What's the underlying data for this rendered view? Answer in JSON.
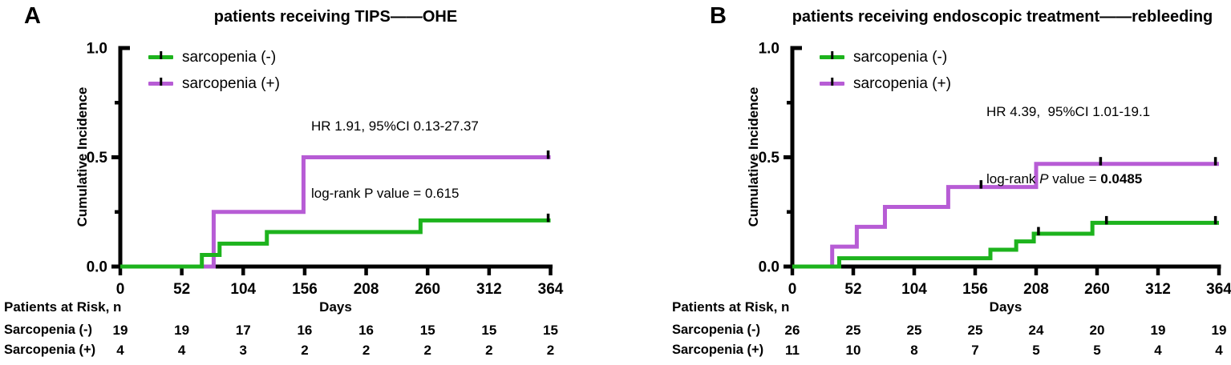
{
  "colors": {
    "green": "#1db31d",
    "purple": "#b75cd5",
    "axis": "#000000"
  },
  "panels": [
    {
      "letter": "A",
      "title": "patients receiving TIPS——OHE",
      "ylabel": "Cumulative Incidence",
      "xlabel": "Days",
      "legend": [
        {
          "label": "sarcopenia (-)",
          "color": "green"
        },
        {
          "label": "sarcopenia (+)",
          "color": "purple"
        }
      ],
      "stats": {
        "line1": "HR 1.91, 95%CI 0.13-27.37",
        "line2_prefix": "log-rank ",
        "line2_p": "P",
        "line2_mid": " value = ",
        "line2_value": "0.615",
        "p_italic": false,
        "value_bold": false
      },
      "risk_header": "Patients at Risk, n",
      "risk_rows": [
        {
          "label": "Sarcopenia (-)",
          "values": [
            "19",
            "19",
            "17",
            "16",
            "16",
            "15",
            "15",
            "15"
          ]
        },
        {
          "label": "Sarcopenia (+)",
          "values": [
            "4",
            "4",
            "3",
            "2",
            "2",
            "2",
            "2",
            "2"
          ]
        }
      ],
      "chart_data": {
        "type": "line",
        "subtype": "kaplan-meier-cumulative-incidence-step",
        "title": "patients receiving TIPS——OHE",
        "xlabel": "Days",
        "ylabel": "Cumulative Incidence",
        "xlim": [
          0,
          364
        ],
        "ylim": [
          0.0,
          1.0
        ],
        "x_ticks": [
          0,
          52,
          104,
          156,
          208,
          260,
          312,
          364
        ],
        "y_ticks": [
          0.0,
          0.5,
          1.0
        ],
        "y_tick_labels": [
          "0.0",
          "0.5",
          "1.0"
        ],
        "y_minor_ticks": [
          0.25,
          0.75
        ],
        "grid": false,
        "legend_position": "upper-left-inside",
        "series": [
          {
            "name": "sarcopenia (-)",
            "color_key": "green",
            "steps": [
              [
                0,
                0
              ],
              [
                69,
                0.053
              ],
              [
                84,
                0.105
              ],
              [
                124,
                0.158
              ],
              [
                254,
                0.211
              ],
              [
                364,
                0.211
              ]
            ],
            "censor_marks": [
              [
                362,
                0.211
              ]
            ]
          },
          {
            "name": "sarcopenia (+)",
            "color_key": "purple",
            "steps": [
              [
                0,
                0
              ],
              [
                79,
                0.25
              ],
              [
                155,
                0.5
              ],
              [
                364,
                0.5
              ]
            ],
            "censor_marks": [
              [
                362,
                0.5
              ]
            ]
          }
        ]
      }
    },
    {
      "letter": "B",
      "title": "patients receiving endoscopic treatment——rebleeding",
      "ylabel": "Cumulative Incidence",
      "xlabel": "Days",
      "legend": [
        {
          "label": "sarcopenia (-)",
          "color": "green"
        },
        {
          "label": "sarcopenia (+)",
          "color": "purple"
        }
      ],
      "stats": {
        "line1": "HR 4.39,  95%CI 1.01-19.1",
        "line2_prefix": "log-rank ",
        "line2_p": "P",
        "line2_mid": " value = ",
        "line2_value": "0.0485",
        "p_italic": true,
        "value_bold": true
      },
      "risk_header": "Patients at Risk, n",
      "risk_rows": [
        {
          "label": "Sarcopenia (-)",
          "values": [
            "26",
            "25",
            "25",
            "25",
            "24",
            "20",
            "19",
            "19"
          ]
        },
        {
          "label": "Sarcopenia (+)",
          "values": [
            "11",
            "10",
            "8",
            "7",
            "5",
            "5",
            "4",
            "4"
          ]
        }
      ],
      "chart_data": {
        "type": "line",
        "subtype": "kaplan-meier-cumulative-incidence-step",
        "title": "patients receiving endoscopic treatment——rebleeding",
        "xlabel": "Days",
        "ylabel": "Cumulative Incidence",
        "xlim": [
          0,
          364
        ],
        "ylim": [
          0.0,
          1.0
        ],
        "x_ticks": [
          0,
          52,
          104,
          156,
          208,
          260,
          312,
          364
        ],
        "y_ticks": [
          0.0,
          0.5,
          1.0
        ],
        "y_tick_labels": [
          "0.0",
          "0.5",
          "1.0"
        ],
        "y_minor_ticks": [
          0.25,
          0.75
        ],
        "grid": false,
        "legend_position": "upper-left-inside",
        "series": [
          {
            "name": "sarcopenia (-)",
            "color_key": "green",
            "steps": [
              [
                0,
                0
              ],
              [
                40,
                0.038
              ],
              [
                169,
                0.077
              ],
              [
                191,
                0.115
              ],
              [
                206,
                0.15
              ],
              [
                256,
                0.2
              ],
              [
                364,
                0.2
              ]
            ],
            "censor_marks": [
              [
                210,
                0.15
              ],
              [
                268,
                0.2
              ],
              [
                361,
                0.2
              ]
            ]
          },
          {
            "name": "sarcopenia (+)",
            "color_key": "purple",
            "steps": [
              [
                0,
                0
              ],
              [
                34,
                0.091
              ],
              [
                55,
                0.182
              ],
              [
                79,
                0.273
              ],
              [
                133,
                0.364
              ],
              [
                208,
                0.47
              ],
              [
                364,
                0.47
              ]
            ],
            "censor_marks": [
              [
                161,
                0.364
              ],
              [
                263,
                0.47
              ],
              [
                361,
                0.47
              ]
            ]
          }
        ]
      }
    }
  ]
}
